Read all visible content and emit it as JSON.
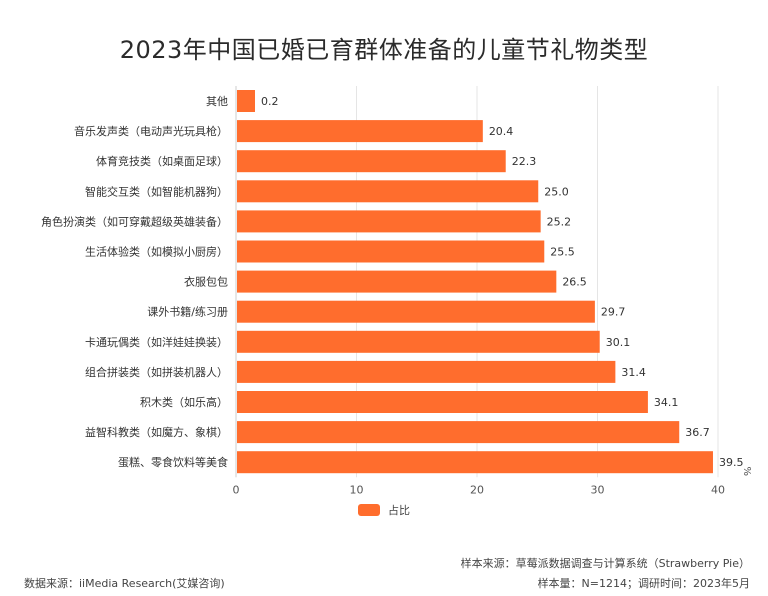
{
  "title": "2023年中国已婚已育群体准备的儿童节礼物类型",
  "legend": {
    "label": "占比"
  },
  "footer": {
    "sample_source": "样本来源：草莓派数据调查与计算系统（Strawberry Pie）",
    "sample_size": "样本量：N=1214；调研时间：2023年5月",
    "data_source": "数据来源：iiMedia Research(艾媒咨询)"
  },
  "colors": {
    "bar": "#ff6d2d",
    "grid": "#e5e5e5",
    "axis": "#cccccc"
  },
  "chart_data": {
    "type": "bar",
    "orientation": "horizontal",
    "categories": [
      "其他",
      "音乐发声类（电动声光玩具枪）",
      "体育竞技类（如桌面足球）",
      "智能交互类（如智能机器狗）",
      "角色扮演类（如可穿戴超级英雄装备）",
      "生活体验类（如模拟小厨房）",
      "衣服包包",
      "课外书籍/练习册",
      "卡通玩偶类（如洋娃娃换装）",
      "组合拼装类（如拼装机器人）",
      "积木类（如乐高）",
      "益智科教类（如魔方、象棋）",
      "蛋糕、零食饮料等美食"
    ],
    "series": [
      {
        "name": "占比",
        "values": [
          0.2,
          20.4,
          22.3,
          25.0,
          25.2,
          25.5,
          26.5,
          29.7,
          30.1,
          31.4,
          34.1,
          36.7,
          39.5
        ]
      }
    ],
    "value_labels": [
      "0.2",
      "20.4",
      "22.3",
      "25.0",
      "25.2",
      "25.5",
      "26.5",
      "29.7",
      "30.1",
      "31.4",
      "34.1",
      "36.7",
      "39.5"
    ],
    "xlim": [
      0,
      40
    ],
    "xticks": [
      "0",
      "10",
      "20",
      "30",
      "40"
    ],
    "unit": "%",
    "grid": true,
    "legend_position": "bottom"
  }
}
